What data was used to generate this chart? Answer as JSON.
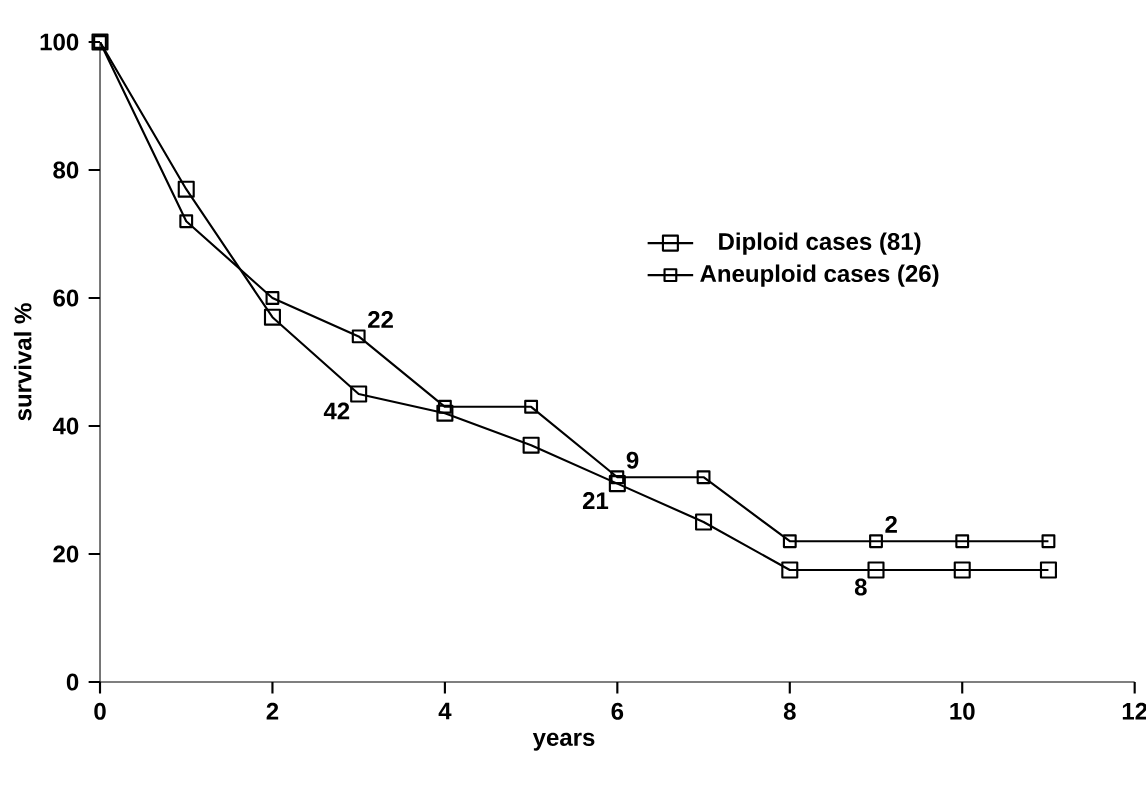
{
  "chart_data": {
    "type": "line",
    "xlabel": "years",
    "ylabel": "survival %",
    "x": [
      0,
      1,
      2,
      3,
      4,
      5,
      6,
      7,
      8,
      9,
      10,
      11
    ],
    "series": [
      {
        "name": "Diploid cases (81)",
        "color": "#000000",
        "values": [
          100,
          77,
          57,
          45,
          42,
          37,
          31,
          25,
          17.5,
          17.5,
          17.5,
          17.5
        ]
      },
      {
        "name": "Aneuploid cases (26)",
        "color": "#000000",
        "values": [
          100,
          72,
          60,
          54,
          43,
          43,
          32,
          32,
          22,
          22,
          22,
          22
        ]
      }
    ],
    "annotations": [
      {
        "text": "22",
        "x": 3,
        "y": 54
      },
      {
        "text": "42",
        "x": 3,
        "y": 45
      },
      {
        "text": "9",
        "x": 6,
        "y": 32
      },
      {
        "text": "21",
        "x": 6,
        "y": 31
      },
      {
        "text": "2",
        "x": 9,
        "y": 22
      },
      {
        "text": "8",
        "x": 9,
        "y": 17.5
      }
    ],
    "xlim": [
      0,
      12
    ],
    "xticks": [
      0,
      2,
      4,
      6,
      8,
      10,
      12
    ],
    "ylim": [
      0,
      100
    ],
    "yticks": [
      0,
      20,
      40,
      60,
      80,
      100
    ],
    "grid": false,
    "legend": "right",
    "marker": "square",
    "line_style": "solid"
  }
}
